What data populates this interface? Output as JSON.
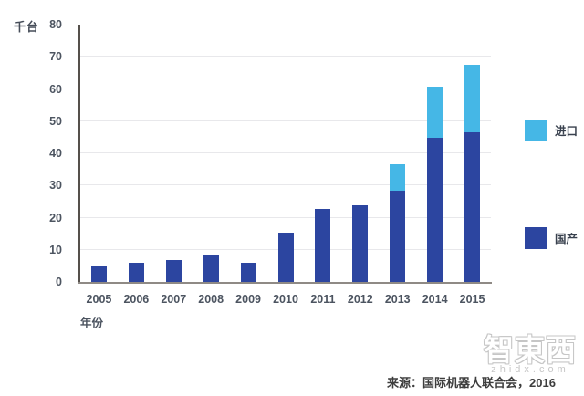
{
  "chart_data": {
    "type": "bar",
    "stacked": true,
    "unit_label": "千台",
    "x_axis_title": "年份",
    "categories": [
      "2005",
      "2006",
      "2007",
      "2008",
      "2009",
      "2010",
      "2011",
      "2012",
      "2013",
      "2014",
      "2015"
    ],
    "series": [
      {
        "key": "domestic",
        "name": "国产",
        "color": "#2c45a0",
        "values": [
          4.8,
          6.0,
          6.9,
          8.3,
          6.0,
          15.2,
          22.8,
          23.7,
          28.3,
          44.8,
          46.5
        ]
      },
      {
        "key": "import",
        "name": "进口",
        "color": "#45b7e6",
        "values": [
          0,
          0,
          0,
          0,
          0,
          0,
          0,
          0,
          8.2,
          16.0,
          21.0
        ]
      }
    ],
    "ylim": [
      0,
      80
    ],
    "yticks": [
      0,
      10,
      20,
      30,
      40,
      50,
      60,
      70,
      80
    ],
    "grid": "horizontal",
    "legend_position": "right"
  },
  "legend": {
    "items": [
      {
        "key": "import",
        "label": "进口",
        "color": "#45b7e6"
      },
      {
        "key": "domestic",
        "label": "国产",
        "color": "#2c45a0"
      }
    ]
  },
  "source_note": "来源：国际机器人联合会，2016",
  "watermark": {
    "logo_text": "智東西",
    "url": "zhidx.com"
  },
  "colors": {
    "domestic_bar": "#2c45a0",
    "import_bar": "#45b7e6",
    "gridline": "#e8e8eb",
    "y_axis": "#55504b",
    "x_axis": "#8f8a85",
    "tick_text": "#4c5460"
  }
}
